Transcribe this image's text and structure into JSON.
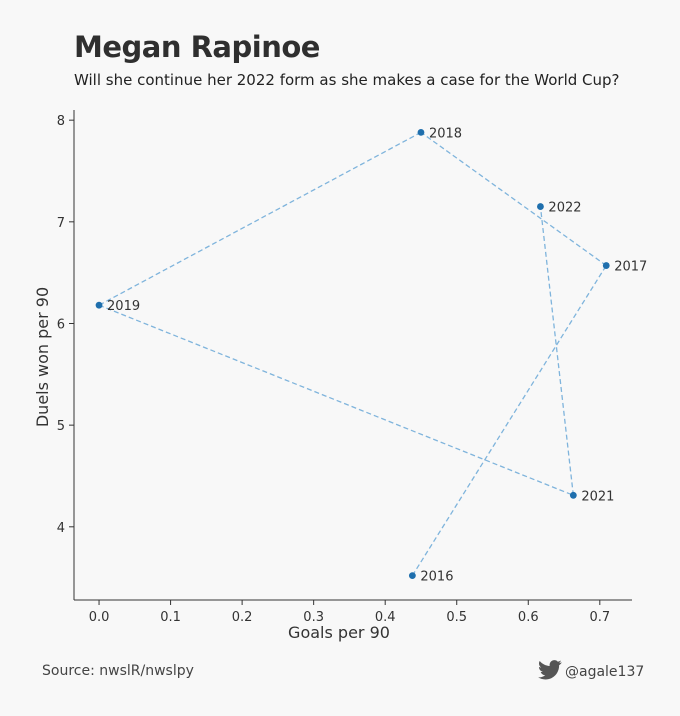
{
  "header": {
    "title": "Megan Rapinoe",
    "subtitle": "Will she continue her 2022 form as she makes a case for the World Cup?"
  },
  "footer": {
    "source": "Source: nwslR/nwslpy",
    "handle": "@agale137",
    "handle_icon": "twitter-bird-icon"
  },
  "colors": {
    "point": "#1f6fad",
    "line": "#7fb4dc",
    "axis": "#333333",
    "background": "#f8f8f8"
  },
  "chart_data": {
    "type": "scatter",
    "xlabel": "Goals per 90",
    "ylabel": "Duels won per 90",
    "xlim": [
      -0.035,
      0.745
    ],
    "ylim": [
      3.28,
      8.1
    ],
    "xticks": [
      0.0,
      0.1,
      0.2,
      0.3,
      0.4,
      0.5,
      0.6,
      0.7
    ],
    "yticks": [
      4,
      5,
      6,
      7,
      8
    ],
    "xtick_labels": [
      "0.0",
      "0.1",
      "0.2",
      "0.3",
      "0.4",
      "0.5",
      "0.6",
      "0.7"
    ],
    "ytick_labels": [
      "4",
      "5",
      "6",
      "7",
      "8"
    ],
    "connected_in_order": true,
    "line_style": "dashed",
    "grid": false,
    "points": [
      {
        "label": "2016",
        "x": 0.438,
        "y": 3.52
      },
      {
        "label": "2017",
        "x": 0.709,
        "y": 6.57
      },
      {
        "label": "2018",
        "x": 0.45,
        "y": 7.88
      },
      {
        "label": "2019",
        "x": 0.0,
        "y": 6.18
      },
      {
        "label": "2021",
        "x": 0.663,
        "y": 4.31
      },
      {
        "label": "2022",
        "x": 0.617,
        "y": 7.15
      }
    ]
  }
}
